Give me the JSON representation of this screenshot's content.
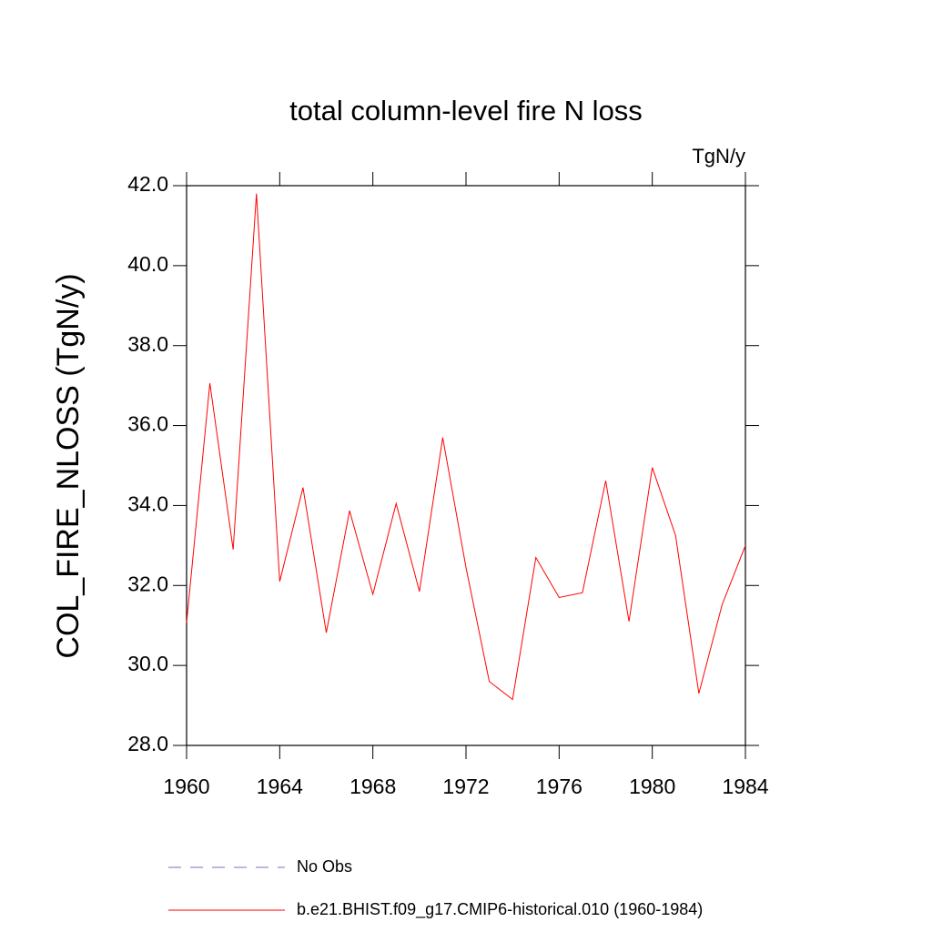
{
  "chart_data": {
    "type": "line",
    "title": "total column-level fire N loss",
    "units_label": "TgN/y",
    "ylabel": "COL_FIRE_NLOSS  (TgN/y)",
    "x": [
      1960,
      1961,
      1962,
      1963,
      1964,
      1965,
      1966,
      1967,
      1968,
      1969,
      1970,
      1971,
      1972,
      1973,
      1974,
      1975,
      1976,
      1977,
      1978,
      1979,
      1980,
      1981,
      1982,
      1983,
      1984
    ],
    "series": [
      {
        "name": "No Obs",
        "color": "#7070c0",
        "dashed": true,
        "values": [
          null,
          null,
          null,
          null,
          null,
          null,
          null,
          null,
          null,
          null,
          null,
          null,
          null,
          null,
          null,
          null,
          null,
          null,
          null,
          null,
          null,
          null,
          null,
          null,
          null
        ]
      },
      {
        "name": "b.e21.BHIST.f09_g17.CMIP6-historical.010 (1960-1984)",
        "color": "#ff0000",
        "dashed": false,
        "values": [
          31.07,
          37.06,
          32.9,
          41.8,
          32.1,
          34.45,
          30.82,
          33.87,
          31.78,
          34.05,
          31.85,
          35.7,
          32.45,
          29.6,
          29.15,
          32.7,
          31.7,
          31.82,
          34.62,
          31.1,
          34.95,
          33.25,
          29.3,
          31.52,
          33.0
        ]
      }
    ],
    "xlim": [
      1960,
      1984
    ],
    "xticks": [
      1960,
      1964,
      1968,
      1972,
      1976,
      1980,
      1984
    ],
    "ylim": [
      28,
      42
    ],
    "yticks": [
      {
        "value": 28,
        "label": "28.0"
      },
      {
        "value": 30,
        "label": "30.0"
      },
      {
        "value": 32,
        "label": "32.0"
      },
      {
        "value": 34,
        "label": "34.0"
      },
      {
        "value": 36,
        "label": "36.0"
      },
      {
        "value": 38,
        "label": "38.0"
      },
      {
        "value": 40,
        "label": "40.0"
      },
      {
        "value": 42,
        "label": "42.0"
      }
    ],
    "grid": false
  }
}
